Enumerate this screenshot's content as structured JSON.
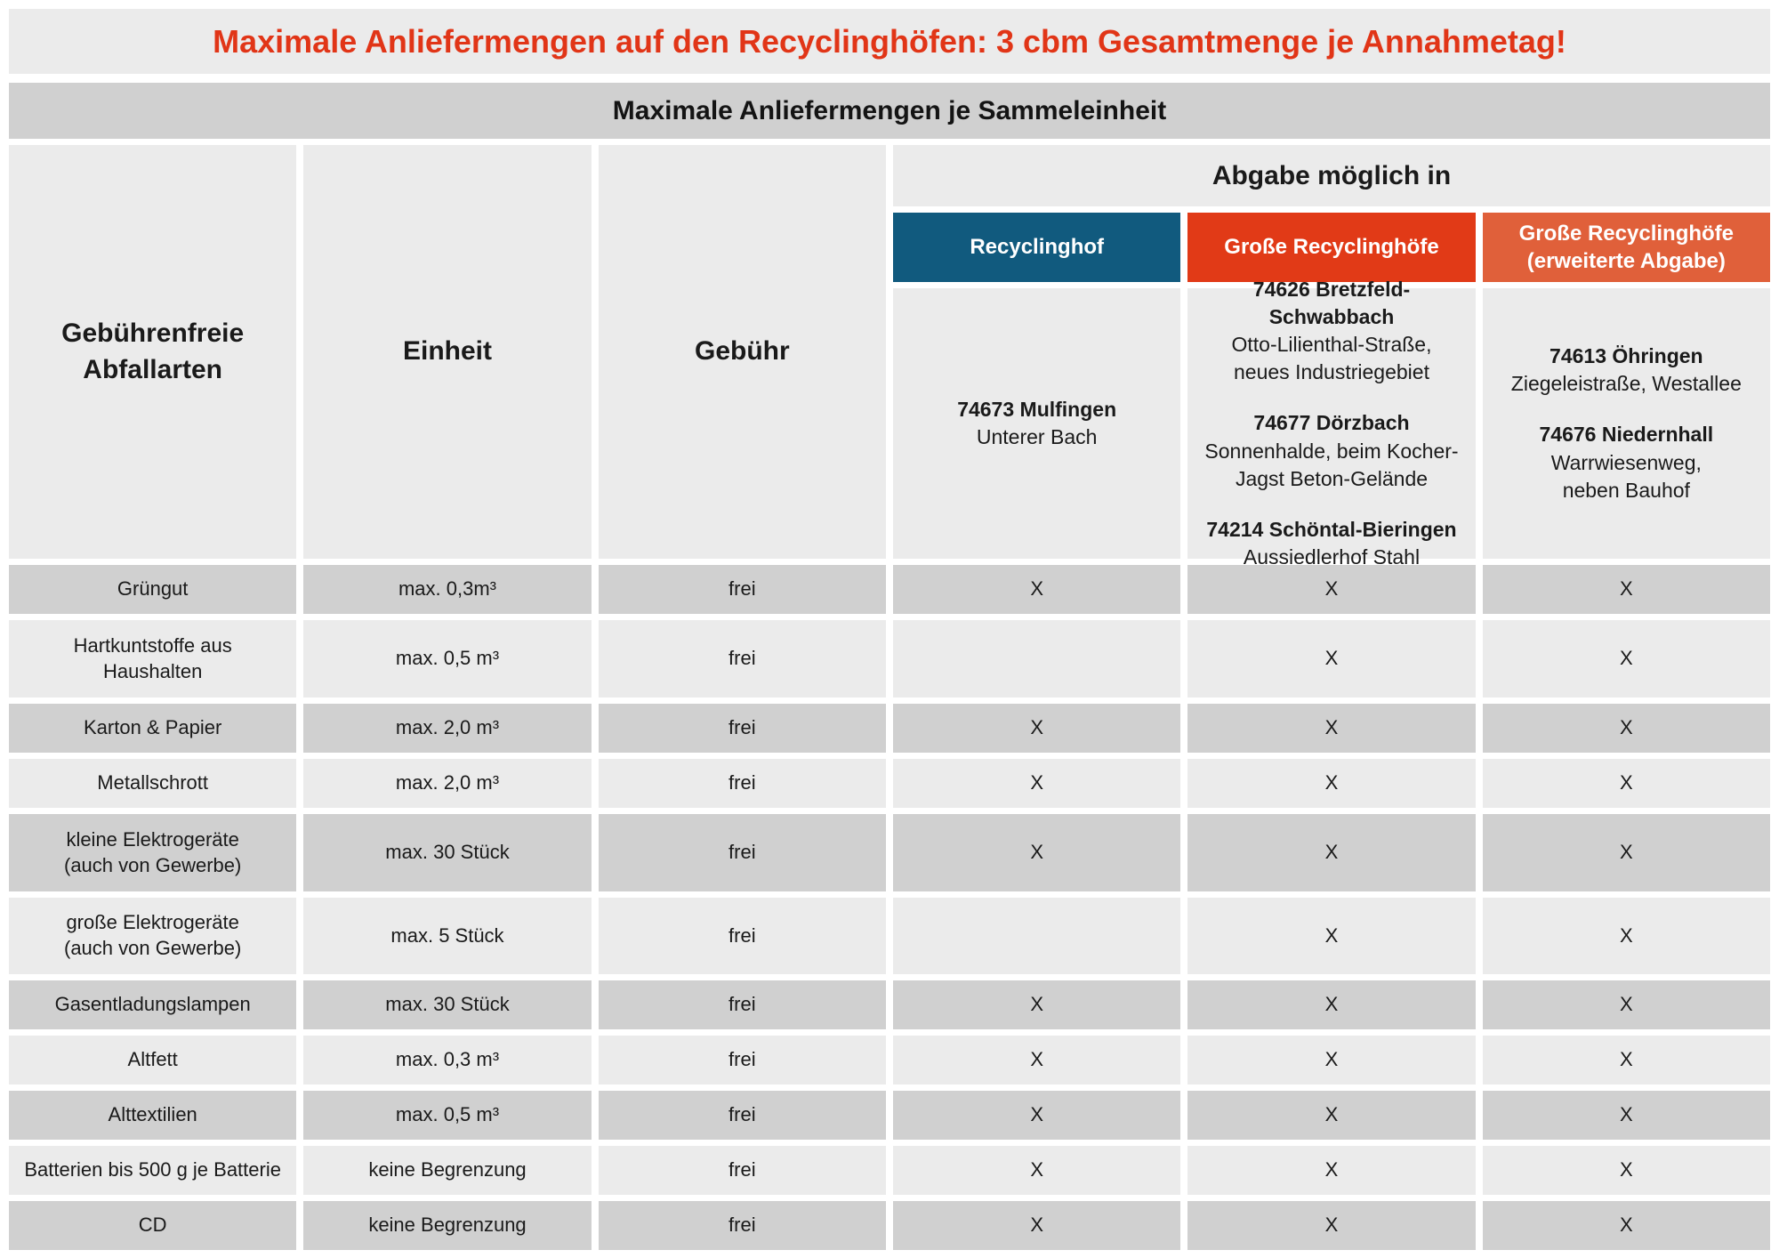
{
  "page": {
    "title": "Maximale Anliefermengen auf den Recyclinghöfen: 3 cbm Gesamtmenge je Annahmetag!",
    "subtitle": "Maximale Anliefermengen je Sammeleinheit"
  },
  "colors": {
    "title-red": "#e13517",
    "header-blue": "#115a7e",
    "header-red": "#e13a17",
    "header-orange": "#e0603a",
    "cell-light": "#ebebeb",
    "cell-dark": "#d0d0d0",
    "text-dark": "#1a1a1a"
  },
  "table": {
    "col_headers": {
      "abfallarten": "Gebührenfreie\nAbfallarten",
      "einheit": "Einheit",
      "gebuehr": "Gebühr",
      "abgabe": "Abgabe möglich in"
    },
    "site_types": [
      {
        "label": "Recyclinghof",
        "color_key": "header-blue"
      },
      {
        "label": "Große Recyclinghöfe",
        "color_key": "header-red"
      },
      {
        "label": "Große Recyclinghöfe\n(erweiterte Abgabe)",
        "color_key": "header-orange"
      }
    ],
    "locations": [
      {
        "entries": [
          {
            "name": "74673 Mulfingen",
            "address": [
              "Unterer Bach"
            ]
          }
        ]
      },
      {
        "entries": [
          {
            "name": "74626 Bretzfeld-Schwabbach",
            "address": [
              "Otto-Lilienthal-Straße,",
              "neues Industriegebiet"
            ]
          },
          {
            "name": "74677 Dörzbach",
            "address": [
              "Sonnenhalde, beim Kocher-",
              "Jagst Beton-Gelände"
            ]
          },
          {
            "name": "74214 Schöntal-Bieringen",
            "address": [
              "Aussiedlerhof Stahl"
            ]
          }
        ]
      },
      {
        "entries": [
          {
            "name": "74613 Öhringen",
            "address": [
              "Ziegeleistraße, Westallee"
            ]
          },
          {
            "name": "74676 Niedernhall",
            "address": [
              "Warrwiesenweg,",
              "neben Bauhof"
            ]
          }
        ]
      }
    ],
    "rows": [
      {
        "abfallart": "Grüngut",
        "einheit": "max. 0,3m³",
        "gebuehr": "frei",
        "abgabe": [
          "X",
          "X",
          "X"
        ]
      },
      {
        "abfallart": "Hartkuntstoffe aus\nHaushalten",
        "einheit": "max. 0,5 m³",
        "gebuehr": "frei",
        "abgabe": [
          "",
          "X",
          "X"
        ]
      },
      {
        "abfallart": "Karton & Papier",
        "einheit": "max. 2,0 m³",
        "gebuehr": "frei",
        "abgabe": [
          "X",
          "X",
          "X"
        ]
      },
      {
        "abfallart": "Metallschrott",
        "einheit": "max. 2,0 m³",
        "gebuehr": "frei",
        "abgabe": [
          "X",
          "X",
          "X"
        ]
      },
      {
        "abfallart": "kleine Elektrogeräte\n(auch von Gewerbe)",
        "einheit": "max. 30 Stück",
        "gebuehr": "frei",
        "abgabe": [
          "X",
          "X",
          "X"
        ]
      },
      {
        "abfallart": "große Elektrogeräte\n(auch von Gewerbe)",
        "einheit": "max. 5 Stück",
        "gebuehr": "frei",
        "abgabe": [
          "",
          "X",
          "X"
        ]
      },
      {
        "abfallart": "Gasentladungslampen",
        "einheit": "max. 30 Stück",
        "gebuehr": "frei",
        "abgabe": [
          "X",
          "X",
          "X"
        ]
      },
      {
        "abfallart": "Altfett",
        "einheit": "max. 0,3 m³",
        "gebuehr": "frei",
        "abgabe": [
          "X",
          "X",
          "X"
        ]
      },
      {
        "abfallart": "Alttextilien",
        "einheit": "max. 0,5 m³",
        "gebuehr": "frei",
        "abgabe": [
          "X",
          "X",
          "X"
        ]
      },
      {
        "abfallart": "Batterien bis 500 g je Batterie",
        "einheit": "keine Begrenzung",
        "gebuehr": "frei",
        "abgabe": [
          "X",
          "X",
          "X"
        ]
      },
      {
        "abfallart": "CD",
        "einheit": "keine Begrenzung",
        "gebuehr": "frei",
        "abgabe": [
          "X",
          "X",
          "X"
        ]
      }
    ]
  }
}
